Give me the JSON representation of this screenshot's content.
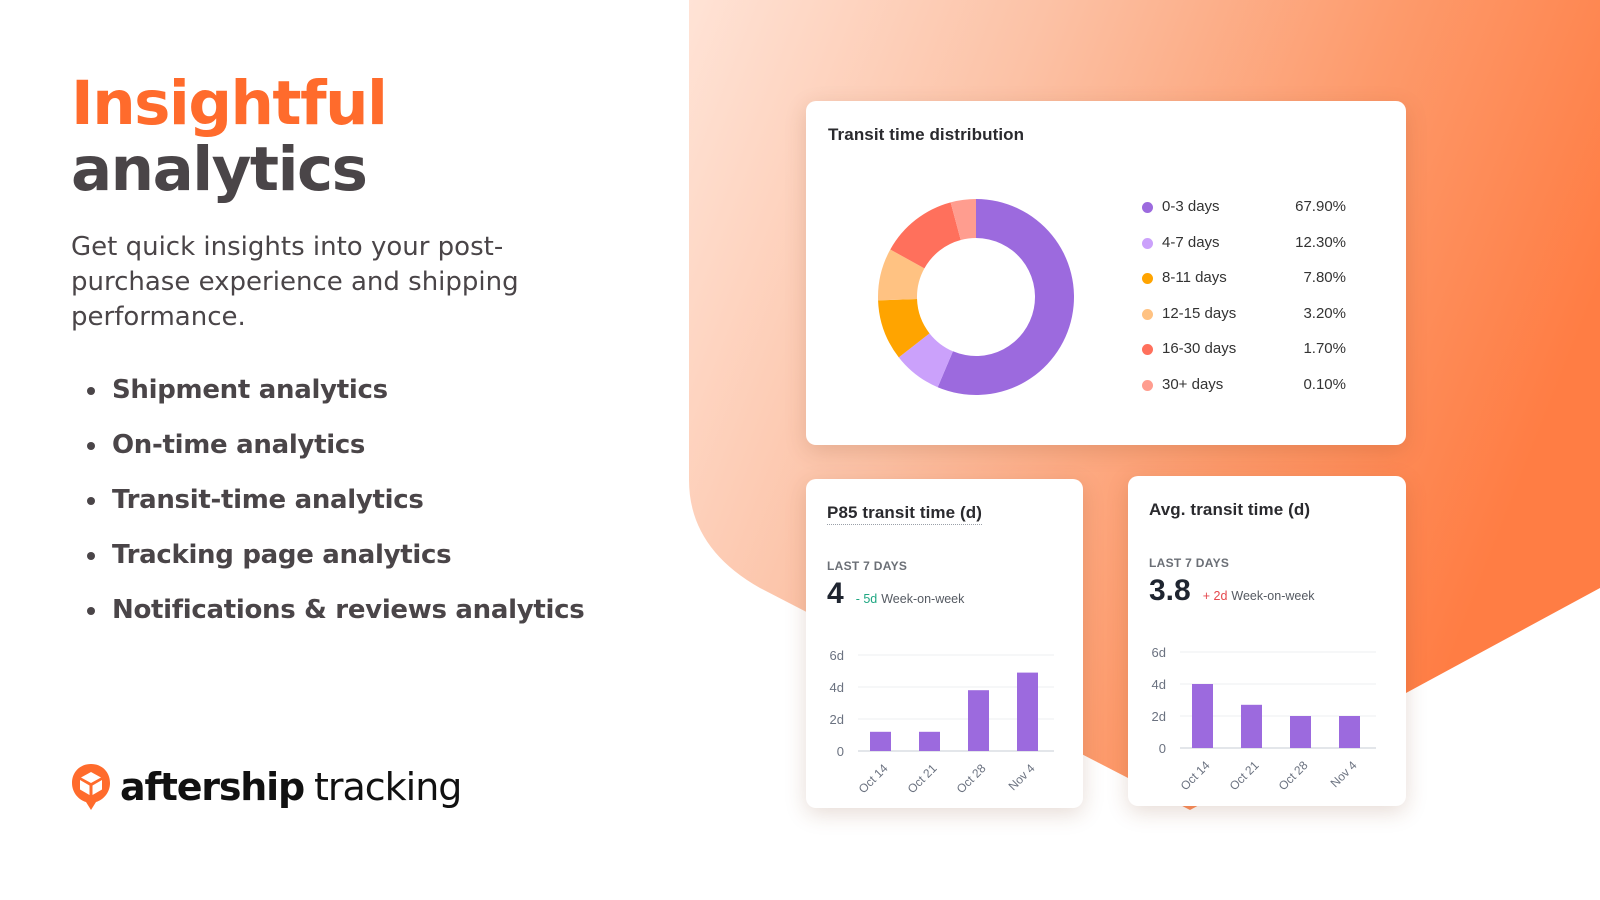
{
  "hero": {
    "title_line1": "Insightful",
    "title_line2": "analytics",
    "description": "Get quick insights into your post-purchase experience and shipping performance.",
    "features": [
      "Shipment analytics",
      "On-time analytics",
      "Transit-time analytics",
      "Tracking page analytics",
      "Notifications & reviews analytics"
    ]
  },
  "brand": {
    "icon": "box-pin-icon",
    "name_bold": "aftership",
    "name_light": "tracking",
    "color": "#ff6b2c"
  },
  "colors": {
    "accent": "#ff6b2c",
    "text_dark": "#4a4548",
    "bar_purple": "#9c6ade",
    "positive": "#1fa782",
    "negative": "#e5484d"
  },
  "distribution_card": {
    "title": "Transit time distribution",
    "legend": [
      {
        "label": "0-3 days",
        "value": "67.90%",
        "color": "#9c6ade"
      },
      {
        "label": "4-7 days",
        "value": "12.30%",
        "color": "#cba1fb"
      },
      {
        "label": "8-11 days",
        "value": "7.80%",
        "color": "#ffa400"
      },
      {
        "label": "12-15 days",
        "value": "3.20%",
        "color": "#ffc282"
      },
      {
        "label": "16-30 days",
        "value": "1.70%",
        "color": "#ff705c"
      },
      {
        "label": "30+ days",
        "value": "0.10%",
        "color": "#ff9d8f"
      }
    ]
  },
  "p85_card": {
    "title": "P85 transit time (d)",
    "period": "LAST 7 DAYS",
    "value": "4",
    "delta": "- 5d",
    "delta_caption": "Week-on-week"
  },
  "avg_card": {
    "title": "Avg. transit time (d)",
    "period": "LAST 7 DAYS",
    "value": "3.8",
    "delta": "+ 2d",
    "delta_caption": "Week-on-week"
  },
  "chart_data": [
    {
      "type": "pie",
      "title": "Transit time distribution",
      "categories": [
        "0-3 days",
        "4-7 days",
        "8-11 days",
        "12-15 days",
        "16-30 days",
        "30+ days"
      ],
      "values": [
        67.9,
        12.3,
        7.8,
        3.2,
        1.7,
        0.1
      ],
      "visual_angles_deg": [
        [
          0,
          203
        ],
        [
          203,
          232
        ],
        [
          232,
          268
        ],
        [
          268,
          299
        ],
        [
          299,
          345
        ],
        [
          345,
          360
        ]
      ],
      "colors": [
        "#9c6ade",
        "#cba1fb",
        "#ffa400",
        "#ffc282",
        "#ff705c",
        "#ff9d8f"
      ],
      "legend_position": "right",
      "donut": true
    },
    {
      "type": "bar",
      "title": "P85 transit time (d)",
      "categories": [
        "Oct 14",
        "Oct 21",
        "Oct 28",
        "Nov 4"
      ],
      "values": [
        1.2,
        1.2,
        3.8,
        4.9
      ],
      "ylabel": "",
      "xlabel": "",
      "yticks": [
        "0",
        "2d",
        "4d",
        "6d"
      ],
      "ylim": [
        0,
        6
      ],
      "grid": true,
      "color": "#9c6ade"
    },
    {
      "type": "bar",
      "title": "Avg. transit time (d)",
      "categories": [
        "Oct 14",
        "Oct 21",
        "Oct 28",
        "Nov 4"
      ],
      "values": [
        4.0,
        2.7,
        2.0,
        2.0
      ],
      "ylabel": "",
      "xlabel": "",
      "yticks": [
        "0",
        "2d",
        "4d",
        "6d"
      ],
      "ylim": [
        0,
        6
      ],
      "grid": true,
      "color": "#9c6ade"
    }
  ]
}
